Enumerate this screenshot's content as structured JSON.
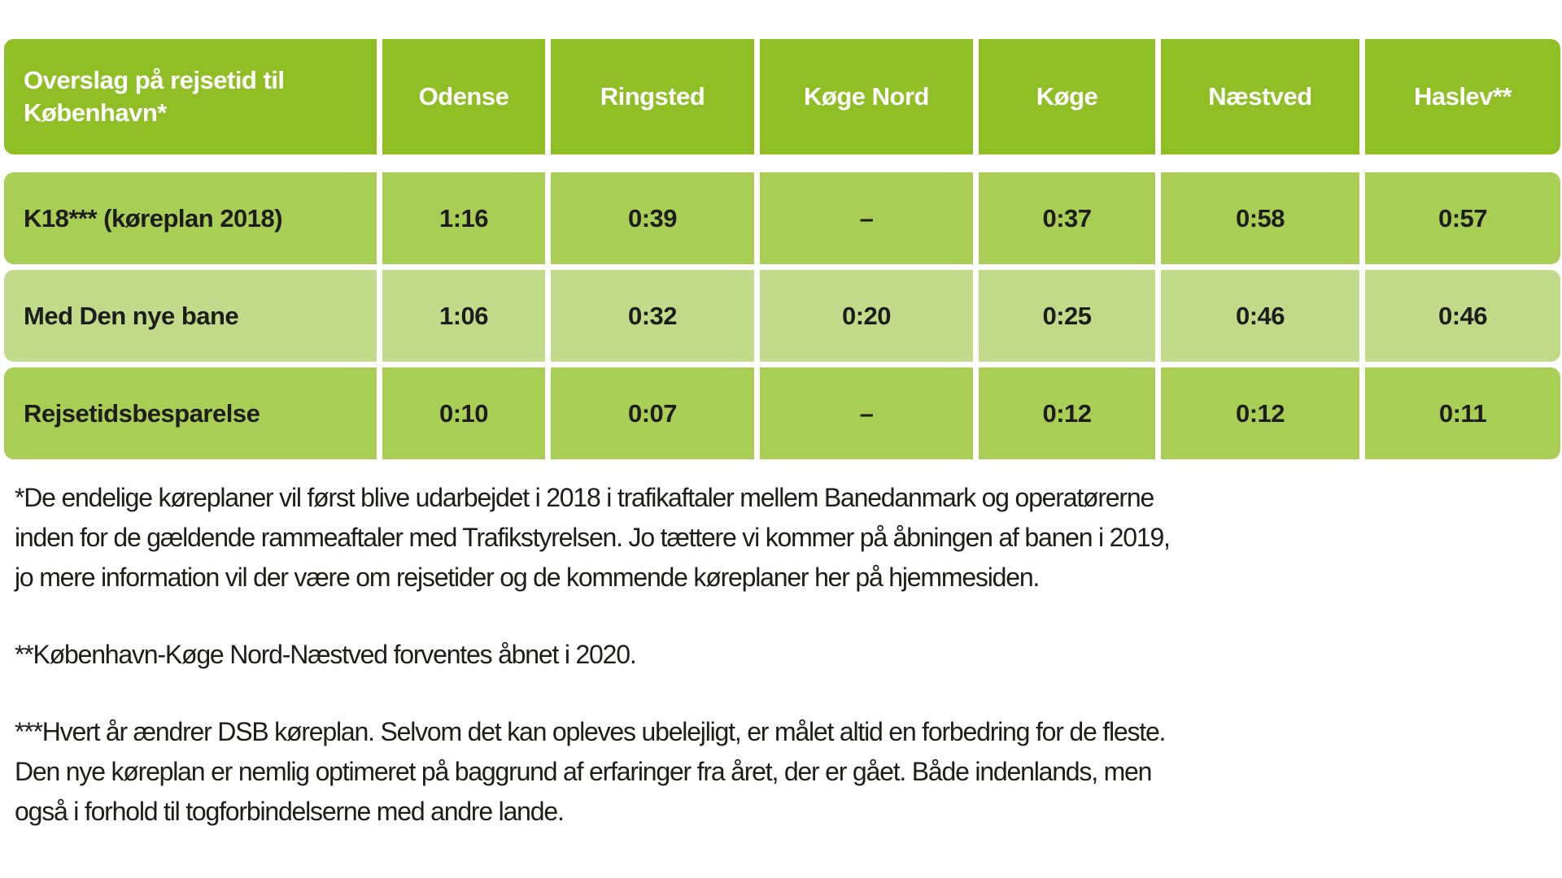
{
  "colors": {
    "header_green": "#8fbe25",
    "row_medium_green": "#a8ce55",
    "row_light_green": "#c1db8b",
    "header_text": "#ffffff",
    "body_text": "#1d1d1b",
    "background": "#ffffff"
  },
  "table": {
    "header": {
      "label": "Overslag på rejsetid til\nKøbenhavn*",
      "columns": [
        "Odense",
        "Ringsted",
        "Køge Nord",
        "Køge",
        "Næstved",
        "Haslev**"
      ]
    },
    "rows": [
      {
        "label": "K18*** (køreplan 2018)",
        "values": [
          "1:16",
          "0:39",
          "–",
          "0:37",
          "0:58",
          "0:57"
        ]
      },
      {
        "label": "Med Den nye bane",
        "values": [
          "1:06",
          "0:32",
          "0:20",
          "0:25",
          "0:46",
          "0:46"
        ]
      },
      {
        "label": "Rejsetidsbesparelse",
        "values": [
          "0:10",
          "0:07",
          "–",
          "0:12",
          "0:12",
          "0:11"
        ]
      }
    ]
  },
  "footnotes": [
    "*De endelige køreplaner vil først blive udarbejdet i 2018 i trafikaftaler mellem Banedanmark og operatørerne\ninden for de gældende rammeaftaler med Trafikstyrelsen. Jo tættere vi kommer på åbningen af banen i 2019,\njo mere information vil der være om rejsetider og de kommende køreplaner her på hjemmesiden.",
    "**København-Køge Nord-Næstved forventes åbnet i 2020.",
    "***Hvert år ændrer DSB køreplan. Selvom det kan opleves ubelejligt, er målet altid en forbedring for de fleste.\nDen nye køreplan er nemlig optimeret på baggrund af erfaringer fra året, der er gået. Både indenlands, men\nogså i forhold til togforbindelserne med andre lande."
  ]
}
